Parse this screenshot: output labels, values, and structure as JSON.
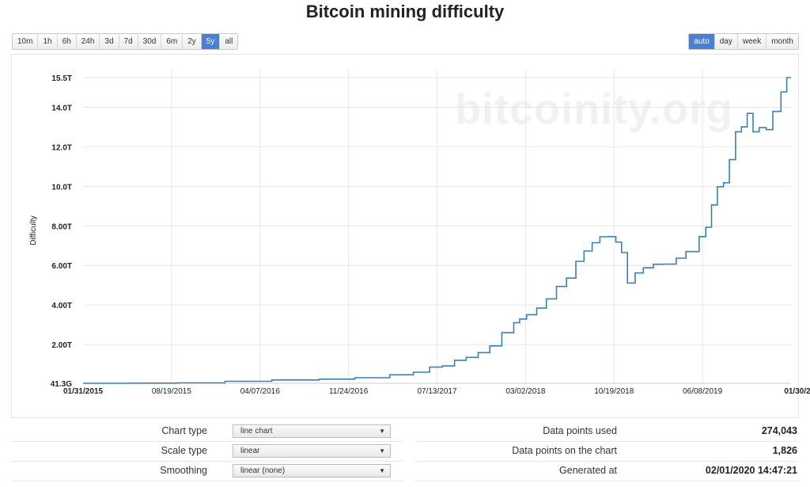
{
  "page": {
    "title": "Bitcoin mining difficulty",
    "watermark": "bitcoinity.org"
  },
  "range_buttons": [
    "10m",
    "1h",
    "6h",
    "24h",
    "3d",
    "7d",
    "30d",
    "6m",
    "2y",
    "5y",
    "all"
  ],
  "range_active": "5y",
  "resolution_buttons": [
    "auto",
    "day",
    "week",
    "month"
  ],
  "resolution_active": "auto",
  "settings": {
    "chart_type": {
      "label": "Chart type",
      "value": "line chart"
    },
    "scale_type": {
      "label": "Scale type",
      "value": "linear"
    },
    "smoothing": {
      "label": "Smoothing",
      "value": "linear (none)"
    }
  },
  "stats": {
    "points_used": {
      "label": "Data points used",
      "value": "274,043"
    },
    "points_on_chart": {
      "label": "Data points on the chart",
      "value": "1,826"
    },
    "generated_at": {
      "label": "Generated at",
      "value": "02/01/2020 14:47:21"
    }
  },
  "colors": {
    "line": "#3a7fb5",
    "accent": "#4a7fd3",
    "grid": "#e6e6e6"
  },
  "chart_data": {
    "type": "line",
    "title": "Bitcoin mining difficulty",
    "ylabel": "Difficulty",
    "xlabel": "",
    "ylim": [
      0.0413,
      15.5
    ],
    "y_ticks": [
      {
        "value": 0.0413,
        "label": "41.3G"
      },
      {
        "value": 2,
        "label": "2.00T"
      },
      {
        "value": 4,
        "label": "4.00T"
      },
      {
        "value": 6,
        "label": "6.00T"
      },
      {
        "value": 8,
        "label": "8.00T"
      },
      {
        "value": 10,
        "label": "10.0T"
      },
      {
        "value": 12,
        "label": "12.0T"
      },
      {
        "value": 14,
        "label": "14.0T"
      },
      {
        "value": 15.5,
        "label": "15.5T"
      }
    ],
    "x_ticks": [
      "01/31/2015",
      "08/19/2015",
      "04/07/2016",
      "11/24/2016",
      "07/13/2017",
      "03/02/2018",
      "10/19/2018",
      "06/08/2019",
      "01/30/2"
    ],
    "x_range": [
      "2015-01-31",
      "2020-01-31"
    ],
    "grid": true,
    "legend": "none",
    "series": [
      {
        "x": [
          "2015-01-31",
          "2015-06-01",
          "2015-10-01",
          "2016-02-01",
          "2016-06-01",
          "2016-10-01",
          "2017-01-01",
          "2017-04-01",
          "2017-06-01",
          "2017-07-13",
          "2017-08-15",
          "2017-09-15",
          "2017-10-15",
          "2017-11-15",
          "2017-12-15",
          "2018-01-15",
          "2018-02-15",
          "2018-03-02",
          "2018-03-20",
          "2018-04-15",
          "2018-05-10",
          "2018-06-05",
          "2018-07-01",
          "2018-07-25",
          "2018-08-15",
          "2018-09-05",
          "2018-09-25",
          "2018-10-19",
          "2018-11-05",
          "2018-11-20",
          "2018-12-05",
          "2018-12-25",
          "2019-01-15",
          "2019-02-10",
          "2019-03-10",
          "2019-04-10",
          "2019-05-05",
          "2019-06-08",
          "2019-06-25",
          "2019-07-10",
          "2019-07-25",
          "2019-08-10",
          "2019-08-25",
          "2019-09-10",
          "2019-09-25",
          "2019-10-10",
          "2019-10-25",
          "2019-11-10",
          "2019-11-28",
          "2019-12-15",
          "2020-01-05",
          "2020-01-20",
          "2020-01-31"
        ],
        "values": [
          0.0413,
          0.048,
          0.06,
          0.14,
          0.21,
          0.25,
          0.32,
          0.47,
          0.6,
          0.86,
          0.92,
          1.2,
          1.35,
          1.59,
          1.93,
          2.6,
          3.1,
          3.29,
          3.51,
          3.84,
          4.31,
          4.94,
          5.36,
          6.21,
          6.73,
          7.15,
          7.45,
          7.46,
          7.18,
          6.65,
          5.11,
          5.62,
          5.88,
          6.06,
          6.07,
          6.37,
          6.7,
          7.46,
          7.93,
          9.06,
          9.98,
          10.18,
          11.35,
          12.76,
          13.01,
          13.69,
          12.76,
          12.97,
          12.87,
          13.79,
          14.78,
          15.5,
          15.5
        ]
      }
    ]
  }
}
